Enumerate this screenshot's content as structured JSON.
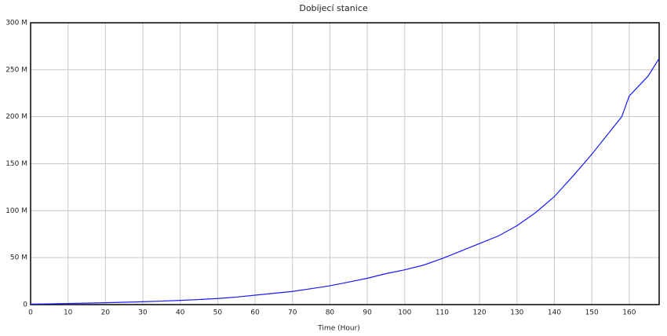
{
  "chart_data": {
    "type": "line",
    "title": "Dobíjecí stanice",
    "x_label": "Time (Hour)",
    "x": [
      0,
      5,
      10,
      15,
      20,
      25,
      30,
      35,
      40,
      45,
      50,
      55,
      60,
      65,
      70,
      75,
      80,
      85,
      90,
      95,
      100,
      105,
      110,
      115,
      120,
      125,
      130,
      135,
      140,
      145,
      150,
      155,
      158,
      160,
      165,
      168
    ],
    "values": [
      500000,
      800000,
      1200000,
      1600000,
      2000000,
      2500000,
      3000000,
      3700000,
      4500000,
      5400000,
      6500000,
      8000000,
      10000000,
      12000000,
      14000000,
      17000000,
      20000000,
      24000000,
      28000000,
      33000000,
      37000000,
      42000000,
      49000000,
      57000000,
      65000000,
      73000000,
      84000000,
      98000000,
      115000000,
      137000000,
      160000000,
      185000000,
      200000000,
      222000000,
      243000000,
      262000000
    ],
    "color": "#1a1aff",
    "xlim": [
      0,
      168
    ],
    "xticks": [
      0,
      10,
      20,
      30,
      40,
      50,
      60,
      70,
      80,
      90,
      100,
      110,
      120,
      130,
      140,
      150,
      160
    ],
    "ylim": [
      0,
      300000000
    ],
    "yticks": [
      0,
      {
        "value": 50000000,
        "label": "50 M"
      },
      {
        "value": 100000000,
        "label": "100 M"
      },
      {
        "value": 150000000,
        "label": "150 M"
      },
      {
        "value": 200000000,
        "label": "200 M"
      },
      {
        "value": 250000000,
        "label": "250 M"
      },
      {
        "value": 300000000,
        "label": "300 M"
      }
    ],
    "grid": true
  }
}
